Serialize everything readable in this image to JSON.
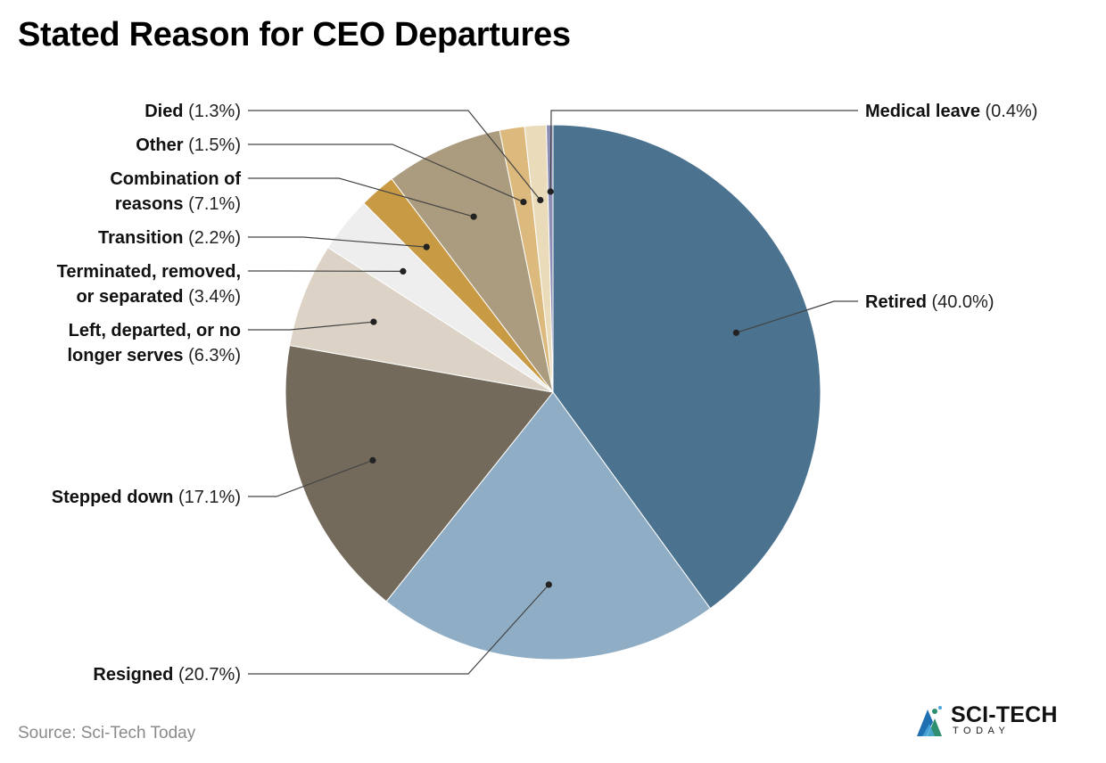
{
  "title": "Stated Reason for CEO Departures",
  "source": "Source: Sci-Tech Today",
  "logo": {
    "name": "SCI-TECH",
    "sub": "TODAY"
  },
  "chart_data": {
    "type": "pie",
    "title": "Stated Reason for CEO Departures",
    "slices": [
      {
        "label": "Retired",
        "value": 40.0,
        "pct_text": "(40.0%)",
        "color": "#4b728f"
      },
      {
        "label": "Resigned",
        "value": 20.7,
        "pct_text": "(20.7%)",
        "color": "#8fadc4"
      },
      {
        "label": "Stepped down",
        "value": 17.1,
        "pct_text": "(17.1%)",
        "color": "#736a5c"
      },
      {
        "label": "Left, departed, or no longer serves",
        "value": 6.3,
        "pct_text": "(6.3%)",
        "color": "#dcd3c6"
      },
      {
        "label": "Terminated, removed, or separated",
        "value": 3.4,
        "pct_text": "(3.4%)",
        "color": "#eeeeee"
      },
      {
        "label": "Transition",
        "value": 2.2,
        "pct_text": "(2.2%)",
        "color": "#c99a44"
      },
      {
        "label": "Combination of reasons",
        "value": 7.1,
        "pct_text": "(7.1%)",
        "color": "#ac9c7f"
      },
      {
        "label": "Other",
        "value": 1.5,
        "pct_text": "(1.5%)",
        "color": "#dcb97c"
      },
      {
        "label": "Died",
        "value": 1.3,
        "pct_text": "(1.3%)",
        "color": "#eadbbb"
      },
      {
        "label": "Medical leave",
        "value": 0.4,
        "pct_text": "(0.4%)",
        "color": "#8e8fb6"
      }
    ]
  }
}
